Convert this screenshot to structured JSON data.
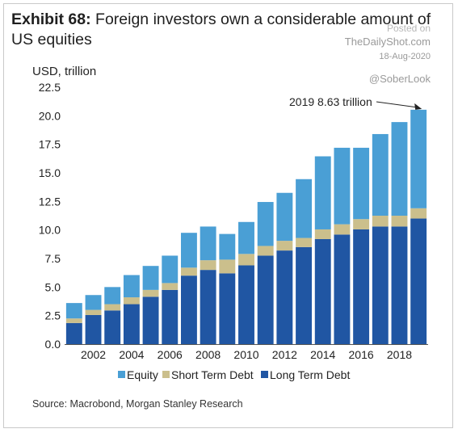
{
  "header": {
    "lead": "Exhibit 68:",
    "title": "Foreign investors own a considerable amount of US equities"
  },
  "watermark": {
    "posted": "Posted on",
    "site": "TheDailyShot.com",
    "date": "18-Aug-2020",
    "handle": "@SoberLook"
  },
  "chart_data": {
    "type": "bar",
    "stacked": true,
    "ylabel": "USD, trillion",
    "ylim": [
      0,
      22.5
    ],
    "yticks": [
      "0.0",
      "2.5",
      "5.0",
      "7.5",
      "10.0",
      "12.5",
      "15.0",
      "17.5",
      "20.0",
      "22.5"
    ],
    "categories": [
      "2001",
      "2002",
      "2003",
      "2004",
      "2005",
      "2006",
      "2007",
      "2008",
      "2009",
      "2010",
      "2011",
      "2012",
      "2013",
      "2014",
      "2015",
      "2016",
      "2017",
      "2018",
      "2019"
    ],
    "xtick_labels": [
      "2002",
      "2004",
      "2006",
      "2008",
      "2010",
      "2012",
      "2014",
      "2016",
      "2018"
    ],
    "series": [
      {
        "name": "Long Term Debt",
        "color": "#2056a3",
        "values": [
          1.85,
          2.55,
          2.95,
          3.5,
          4.15,
          4.75,
          6.0,
          6.5,
          6.2,
          6.9,
          7.75,
          8.2,
          8.5,
          9.2,
          9.6,
          10.05,
          10.3,
          10.3,
          11.0
        ]
      },
      {
        "name": "Short Term Debt",
        "color": "#cbbf8c",
        "values": [
          0.4,
          0.45,
          0.55,
          0.6,
          0.6,
          0.6,
          0.7,
          0.85,
          1.2,
          1.0,
          0.85,
          0.85,
          0.8,
          0.85,
          0.9,
          0.9,
          0.95,
          0.95,
          0.9
        ]
      },
      {
        "name": "Equity",
        "color": "#4a9fd5",
        "values": [
          1.35,
          1.3,
          1.5,
          1.95,
          2.1,
          2.4,
          3.05,
          2.95,
          2.25,
          2.8,
          3.85,
          4.2,
          5.15,
          6.4,
          6.7,
          6.25,
          7.15,
          8.2,
          8.63
        ]
      }
    ],
    "legend": {
      "position": "bottom",
      "order": [
        "Equity",
        "Short Term Debt",
        "Long Term Debt"
      ]
    },
    "annotation": {
      "text": "2019 8.63 trillion",
      "category": "2019"
    },
    "source": "Source: Macrobond, Morgan Stanley Research"
  }
}
